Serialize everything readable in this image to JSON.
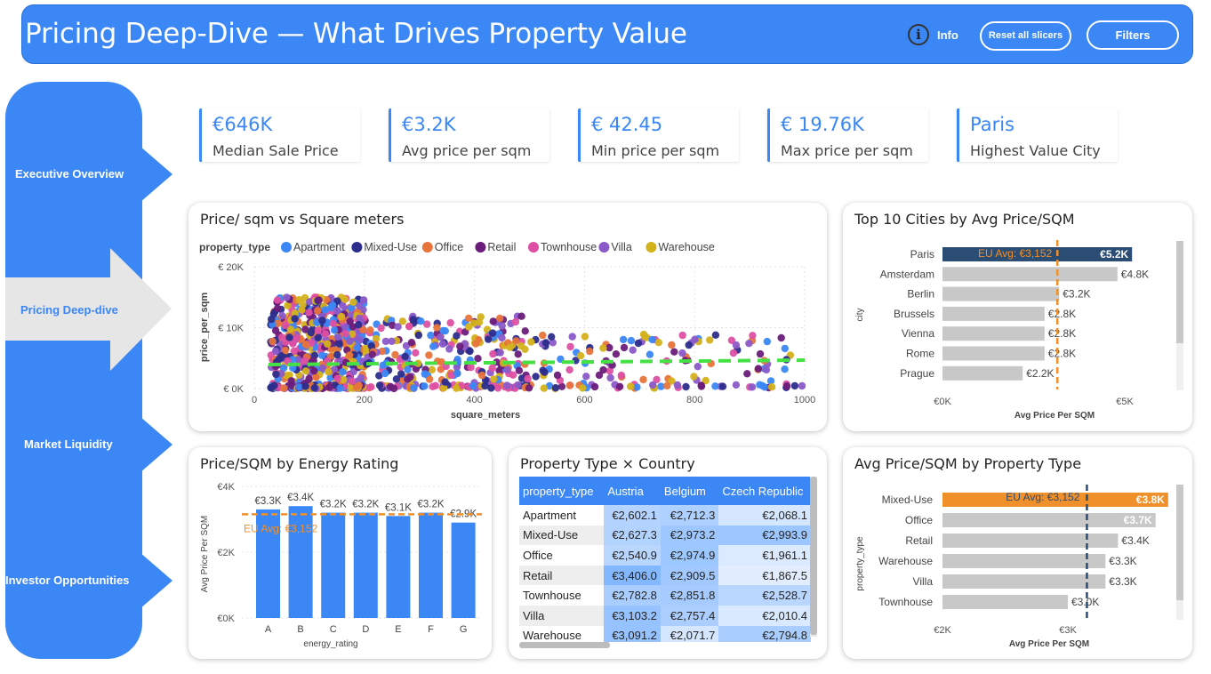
{
  "header": {
    "title": "Pricing Deep-Dive — What Drives Property Value",
    "info_label": "Info",
    "reset_label": "Reset all slicers",
    "filters_label": "Filters"
  },
  "nav": [
    {
      "label": "Executive Overview",
      "active": false
    },
    {
      "label": "Pricing Deep-dive",
      "active": true
    },
    {
      "label": "Market Liquidity",
      "active": false
    },
    {
      "label": "Investor Opportunities",
      "active": false
    }
  ],
  "kpis": [
    {
      "value": "€646K",
      "label": "Median Sale Price"
    },
    {
      "value": "€3.2K",
      "label": "Avg price per sqm"
    },
    {
      "value": "€ 42.45",
      "label": "Min price per sqm"
    },
    {
      "value": "€ 19.76K",
      "label": "Max price per sqm"
    },
    {
      "value": "Paris",
      "label": "Highest Value City"
    }
  ],
  "colors": {
    "accent": "#3b87f5",
    "bar_gray": "#c8c8c8",
    "highlight_navy": "#2b4c73",
    "highlight_orange": "#f0902a",
    "avg_line": "#f0902a",
    "trend_line": "#44e044"
  },
  "scatter": {
    "title": "Price/ sqm vs Square meters",
    "legend_title": "property_type",
    "legend": [
      {
        "name": "Apartment",
        "color": "#3b87f5"
      },
      {
        "name": "Mixed-Use",
        "color": "#2c2d8c"
      },
      {
        "name": "Office",
        "color": "#e8743b"
      },
      {
        "name": "Retail",
        "color": "#6b1c7a"
      },
      {
        "name": "Townhouse",
        "color": "#de4fa3"
      },
      {
        "name": "Villa",
        "color": "#8b5ac9"
      },
      {
        "name": "Warehouse",
        "color": "#d4b21c"
      }
    ],
    "x_ticks": [
      "0",
      "200",
      "400",
      "600",
      "800",
      "1000"
    ],
    "y_ticks": [
      "€ 0K",
      "€ 10K",
      "€ 20K"
    ],
    "xlabel": "square_meters",
    "ylabel": "price_per_sqm"
  },
  "top_cities": {
    "title": "Top 10 Cities by Avg Price/SQM",
    "ylabel": "city",
    "xlabel": "Avg Price Per SQM",
    "x_ticks": [
      "€0K",
      "€5K"
    ],
    "avg_label": "EU Avg: €3,152",
    "rows": [
      {
        "name": "Paris",
        "value": 5200,
        "label": "€5.2K"
      },
      {
        "name": "Amsterdam",
        "value": 4800,
        "label": "€4.8K"
      },
      {
        "name": "Berlin",
        "value": 3200,
        "label": "€3.2K"
      },
      {
        "name": "Brussels",
        "value": 2800,
        "label": "€2.8K"
      },
      {
        "name": "Vienna",
        "value": 2800,
        "label": "€2.8K"
      },
      {
        "name": "Rome",
        "value": 2800,
        "label": "€2.8K"
      },
      {
        "name": "Prague",
        "value": 2200,
        "label": "€2.2K"
      }
    ]
  },
  "energy": {
    "title": "Price/SQM by Energy Rating",
    "ylabel": "Avg Price Per SQM",
    "xlabel": "energy_rating",
    "y_ticks": [
      "€0K",
      "€2K",
      "€4K"
    ],
    "avg_label": "EU Avg: €3,152",
    "bars": [
      {
        "name": "A",
        "value": 3300,
        "label": "€3.3K"
      },
      {
        "name": "B",
        "value": 3400,
        "label": "€3.4K"
      },
      {
        "name": "C",
        "value": 3200,
        "label": "€3.2K"
      },
      {
        "name": "D",
        "value": 3200,
        "label": "€3.2K"
      },
      {
        "name": "E",
        "value": 3100,
        "label": "€3.1K"
      },
      {
        "name": "F",
        "value": 3200,
        "label": "€3.2K"
      },
      {
        "name": "G",
        "value": 2900,
        "label": "€2.9K"
      }
    ]
  },
  "matrix": {
    "title": "Property Type × Country",
    "columns": [
      "property_type",
      "Austria",
      "Belgium",
      "Czech Republic"
    ],
    "rows": [
      [
        "Apartment",
        "€2,602.1",
        "€2,712.3",
        "€2,068.1"
      ],
      [
        "Mixed-Use",
        "€2,627.3",
        "€2,973.2",
        "€2,993.9"
      ],
      [
        "Office",
        "€2,540.9",
        "€2,974.9",
        "€1,961.1"
      ],
      [
        "Retail",
        "€3,406.0",
        "€2,909.5",
        "€1,867.5"
      ],
      [
        "Townhouse",
        "€2,782.8",
        "€2,851.8",
        "€2,528.7"
      ],
      [
        "Villa",
        "€3,103.2",
        "€2,757.4",
        "€2,010.4"
      ],
      [
        "Warehouse",
        "€3,091.2",
        "€2,071.7",
        "€2,794.8"
      ]
    ]
  },
  "by_type": {
    "title": "Avg Price/SQM by Property Type",
    "ylabel": "property_type",
    "xlabel": "Avg Price Per SQM",
    "x_ticks": [
      "€2K",
      "€3K"
    ],
    "avg_label": "EU Avg: €3,152",
    "rows": [
      {
        "name": "Mixed-Use",
        "value": 3800,
        "label": "€3.8K"
      },
      {
        "name": "Office",
        "value": 3700,
        "label": "€3.7K"
      },
      {
        "name": "Retail",
        "value": 3400,
        "label": "€3.4K"
      },
      {
        "name": "Warehouse",
        "value": 3300,
        "label": "€3.3K"
      },
      {
        "name": "Villa",
        "value": 3300,
        "label": "€3.3K"
      },
      {
        "name": "Townhouse",
        "value": 3000,
        "label": "€3.0K"
      }
    ]
  }
}
